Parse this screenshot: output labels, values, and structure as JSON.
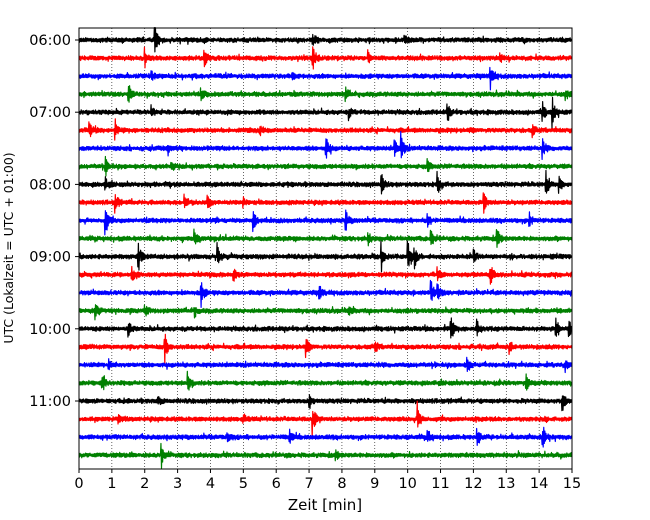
{
  "chart_data": {
    "type": "line",
    "subtype": "helicorder",
    "xlabel": "Zeit  [min]",
    "ylabel": "UTC (Lokalzeit = UTC + 01:00)",
    "xlim": [
      0,
      15
    ],
    "xticks": [
      0,
      1,
      2,
      3,
      4,
      5,
      6,
      7,
      8,
      9,
      10,
      11,
      12,
      13,
      14,
      15
    ],
    "xtick_labels": [
      "0",
      "1",
      "2",
      "3",
      "4",
      "5",
      "6",
      "7",
      "8",
      "9",
      "10",
      "11",
      "12",
      "13",
      "14",
      "15"
    ],
    "y_tick_labels": [
      "06:00",
      "07:00",
      "08:00",
      "09:00",
      "10:00",
      "11:00"
    ],
    "trace_minutes": 15,
    "trace_start_times": [
      "06:00",
      "06:15",
      "06:30",
      "06:45",
      "07:00",
      "07:15",
      "07:30",
      "07:45",
      "08:00",
      "08:15",
      "08:30",
      "08:45",
      "09:00",
      "09:15",
      "09:30",
      "09:45",
      "10:00",
      "10:15",
      "10:30",
      "10:45",
      "11:00",
      "11:15",
      "11:30",
      "11:45"
    ],
    "color_cycle": [
      "#000000",
      "#ff0000",
      "#0000ff",
      "#008000"
    ],
    "grid": "vertical dotted lines at each minute",
    "legend": "none",
    "events_note": "approximate minute positions and relative amplitudes of visible spikes per trace",
    "events": [
      [
        [
          2.3,
          1.0
        ],
        [
          7.1,
          0.45
        ],
        [
          9.9,
          0.35
        ]
      ],
      [
        [
          2.0,
          0.55
        ],
        [
          3.8,
          0.6
        ],
        [
          7.1,
          0.9
        ],
        [
          8.8,
          0.35
        ],
        [
          12.8,
          0.3
        ]
      ],
      [
        [
          12.5,
          1.0
        ],
        [
          6.5,
          0.3
        ],
        [
          2.2,
          0.3
        ]
      ],
      [
        [
          1.5,
          0.6
        ],
        [
          3.7,
          0.4
        ],
        [
          8.1,
          0.4
        ],
        [
          14.8,
          0.35
        ]
      ],
      [
        [
          2.2,
          0.45
        ],
        [
          8.2,
          0.35
        ],
        [
          11.2,
          0.55
        ],
        [
          14.4,
          0.9
        ],
        [
          14.1,
          0.55
        ]
      ],
      [
        [
          0.3,
          0.55
        ],
        [
          1.1,
          0.45
        ],
        [
          5.5,
          0.3
        ],
        [
          13.8,
          0.35
        ]
      ],
      [
        [
          7.5,
          0.9
        ],
        [
          9.6,
          0.6
        ],
        [
          9.8,
          0.8
        ],
        [
          14.1,
          0.55
        ],
        [
          2.7,
          0.3
        ]
      ],
      [
        [
          0.8,
          0.55
        ],
        [
          2.8,
          0.35
        ],
        [
          10.6,
          0.35
        ]
      ],
      [
        [
          0.8,
          0.35
        ],
        [
          9.2,
          0.65
        ],
        [
          10.9,
          0.7
        ],
        [
          14.2,
          0.8
        ],
        [
          14.6,
          0.45
        ]
      ],
      [
        [
          1.1,
          0.6
        ],
        [
          3.2,
          0.55
        ],
        [
          3.9,
          0.45
        ],
        [
          12.3,
          0.75
        ],
        [
          5.0,
          0.3
        ]
      ],
      [
        [
          0.8,
          0.9
        ],
        [
          5.3,
          0.6
        ],
        [
          8.1,
          0.7
        ],
        [
          10.6,
          0.35
        ],
        [
          13.7,
          0.4
        ]
      ],
      [
        [
          3.5,
          0.5
        ],
        [
          8.8,
          0.35
        ],
        [
          10.7,
          0.5
        ],
        [
          12.7,
          0.85
        ]
      ],
      [
        [
          1.8,
          1.0
        ],
        [
          4.2,
          0.8
        ],
        [
          9.2,
          0.8
        ],
        [
          10.0,
          1.0
        ],
        [
          10.2,
          0.6
        ],
        [
          12.0,
          0.45
        ]
      ],
      [
        [
          1.6,
          0.5
        ],
        [
          4.7,
          0.35
        ],
        [
          10.9,
          0.45
        ],
        [
          12.5,
          0.75
        ]
      ],
      [
        [
          3.7,
          0.9
        ],
        [
          7.3,
          0.5
        ],
        [
          10.7,
          0.75
        ],
        [
          10.9,
          0.6
        ]
      ],
      [
        [
          0.5,
          0.5
        ],
        [
          2.0,
          0.35
        ],
        [
          3.5,
          0.35
        ],
        [
          8.2,
          0.3
        ]
      ],
      [
        [
          1.5,
          0.5
        ],
        [
          11.3,
          0.9
        ],
        [
          12.1,
          0.55
        ],
        [
          14.5,
          0.8
        ],
        [
          14.9,
          0.55
        ]
      ],
      [
        [
          2.6,
          1.0
        ],
        [
          6.9,
          0.5
        ],
        [
          9.0,
          0.35
        ],
        [
          13.1,
          0.3
        ]
      ],
      [
        [
          0.9,
          0.35
        ],
        [
          11.8,
          0.6
        ],
        [
          14.8,
          0.35
        ]
      ],
      [
        [
          0.7,
          0.65
        ],
        [
          3.3,
          0.6
        ],
        [
          13.6,
          0.55
        ]
      ],
      [
        [
          2.4,
          0.3
        ],
        [
          7.0,
          0.45
        ],
        [
          14.7,
          0.7
        ]
      ],
      [
        [
          7.1,
          1.0
        ],
        [
          10.3,
          0.9
        ],
        [
          1.2,
          0.3
        ],
        [
          5.0,
          0.3
        ]
      ],
      [
        [
          6.4,
          0.45
        ],
        [
          10.6,
          0.5
        ],
        [
          12.1,
          0.55
        ],
        [
          14.1,
          0.7
        ],
        [
          4.5,
          0.35
        ]
      ],
      [
        [
          2.5,
          0.85
        ],
        [
          7.8,
          0.35
        ]
      ]
    ]
  }
}
